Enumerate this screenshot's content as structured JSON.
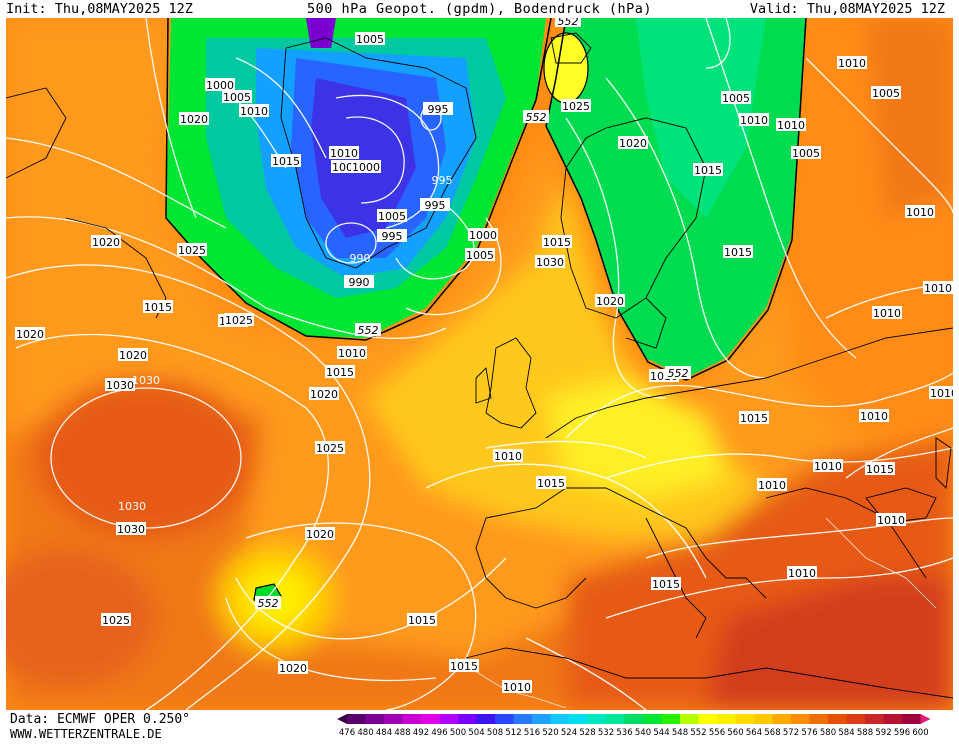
{
  "header": {
    "init": "Init: Thu,08MAY2025 12Z",
    "title": "500 hPa Geopot. (gpdm), Bodendruck (hPa)",
    "valid": "Valid: Thu,08MAY2025 12Z"
  },
  "footer": {
    "source": "Data: ECMWF OPER 0.250°",
    "website": "WWW.WETTERZENTRALE.DE"
  },
  "legend": {
    "ticks": [
      "476",
      "480",
      "484",
      "488",
      "492",
      "496",
      "500",
      "504",
      "508",
      "512",
      "516",
      "520",
      "524",
      "528",
      "532",
      "536",
      "540",
      "544",
      "548",
      "552",
      "556",
      "560",
      "564",
      "568",
      "572",
      "576",
      "580",
      "584",
      "588",
      "592",
      "596",
      "600"
    ],
    "colors": [
      "#3a0046",
      "#5a006e",
      "#7c0096",
      "#a000b4",
      "#c800d2",
      "#e000e6",
      "#b400ff",
      "#7a00ff",
      "#3c14f0",
      "#2846ff",
      "#2878ff",
      "#1ea0ff",
      "#14c8ff",
      "#00dcf0",
      "#00e6be",
      "#00e696",
      "#00dc64",
      "#00e632",
      "#28f000",
      "#b4ff00",
      "#ffff00",
      "#fff000",
      "#ffdc00",
      "#ffc800",
      "#ffaa00",
      "#ff8c00",
      "#f06e00",
      "#e65000",
      "#dc3c14",
      "#c82828",
      "#b41432",
      "#a0003c",
      "#dc1e78"
    ]
  },
  "chart_data": {
    "type": "map",
    "fields": [
      "500 hPa geopotential (gpdm, shaded)",
      "surface pressure (hPa, contours)"
    ],
    "highs_and_lows": [
      {
        "label": "1030",
        "kind": "pressure-center"
      },
      {
        "label": "1030",
        "kind": "pressure-center"
      },
      {
        "label": "990",
        "kind": "pressure-center"
      },
      {
        "label": "995",
        "kind": "pressure-center"
      }
    ],
    "pressure_labels": [
      "1005",
      "1000",
      "1005",
      "1010",
      "1020",
      "1015",
      "1010",
      "1005",
      "1000",
      "995",
      "995",
      "1005",
      "995",
      "1000",
      "1005",
      "990",
      "1030",
      "1020",
      "1025",
      "1015",
      "1025",
      "1020",
      "1020",
      "1030",
      "1025",
      "1020",
      "1010",
      "1015",
      "1020",
      "1025",
      "1030",
      "1020",
      "1015",
      "1025",
      "1015",
      "1015",
      "1010",
      "1020",
      "1015",
      "1010",
      "1025",
      "1020",
      "1015",
      "1005",
      "1010",
      "1010",
      "1005",
      "1005",
      "1010",
      "1010",
      "1015",
      "1010",
      "1010",
      "1010",
      "1010",
      "1015",
      "1010",
      "1015",
      "1010",
      "1010",
      "1010",
      "1015",
      "1010"
    ],
    "geopotential_labels": [
      "552",
      "552",
      "552",
      "552",
      "552"
    ]
  }
}
